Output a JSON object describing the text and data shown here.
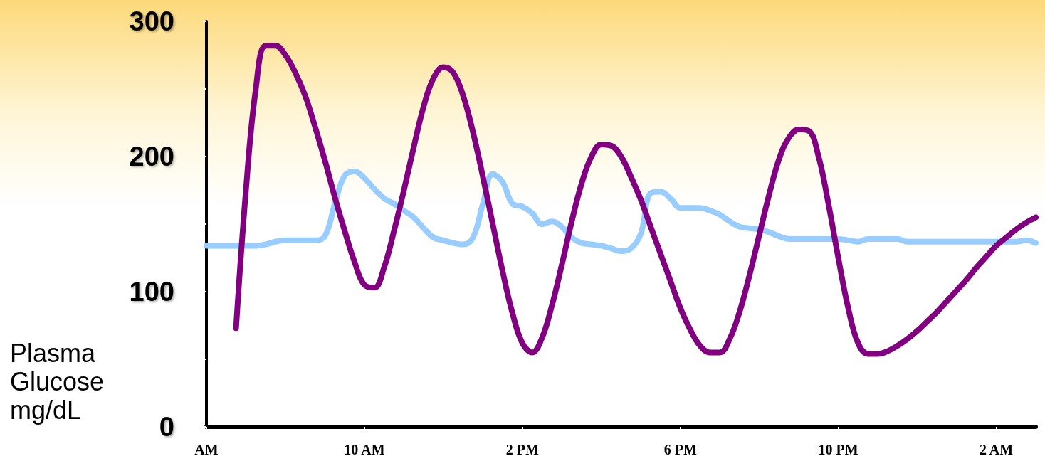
{
  "chart_data": {
    "type": "line",
    "ylabel": "Plasma Glucose mg/dL",
    "categories": [
      "AM",
      null,
      null,
      null,
      null,
      null,
      null,
      null,
      null,
      null,
      null,
      null,
      null,
      null,
      null,
      null,
      "10 AM",
      null,
      null,
      null,
      null,
      null,
      null,
      null,
      null,
      null,
      null,
      null,
      null,
      null,
      null,
      null,
      "2 PM",
      null,
      null,
      null,
      null,
      null,
      null,
      null,
      null,
      null,
      null,
      null,
      null,
      null,
      null,
      null,
      "6 PM",
      null,
      null,
      null,
      null,
      null,
      null,
      null,
      null,
      null,
      null,
      null,
      null,
      null,
      null,
      null,
      "10 PM",
      null,
      null,
      null,
      null,
      null,
      null,
      null,
      null,
      null,
      null,
      null,
      null,
      null,
      null,
      null,
      "2 AM",
      null,
      null,
      null,
      null
    ],
    "ylim": [
      0,
      300
    ],
    "yticks": [
      0,
      {
        "value": 50,
        "label": null
      },
      100,
      {
        "value": 150,
        "label": null
      },
      200,
      {
        "value": 250,
        "label": null
      },
      300
    ],
    "grid": false,
    "marker": "none",
    "line_style": "solid",
    "series": [
      {
        "color": "#99ccff",
        "values": [
          134,
          134,
          134,
          134,
          134,
          134,
          135,
          137,
          138,
          138,
          138,
          138,
          141,
          165,
          186,
          189,
          184,
          176,
          169,
          165,
          160,
          155,
          147,
          140,
          138,
          136,
          135,
          140,
          165,
          187,
          181,
          165,
          163,
          158,
          150,
          152,
          148,
          140,
          136,
          135,
          134,
          132,
          130,
          132,
          143,
          173,
          174,
          169,
          162,
          162,
          162,
          160,
          157,
          152,
          148,
          147,
          146,
          144,
          141,
          139,
          139,
          139,
          139,
          139,
          139,
          138,
          137,
          139,
          139,
          139,
          139,
          137,
          137,
          137,
          137,
          137,
          137,
          137,
          137,
          137,
          137,
          137,
          137,
          138,
          136
        ]
      },
      {
        "color": "#800080",
        "values": [
          null,
          null,
          null,
          73,
          175,
          250,
          282,
          282,
          275,
          262,
          245,
          222,
          197,
          170,
          145,
          122,
          105,
          103,
          118,
          145,
          175,
          207,
          237,
          258,
          266,
          262,
          245,
          218,
          185,
          150,
          115,
          84,
          62,
          55,
          66,
          90,
          120,
          152,
          180,
          200,
          209,
          208,
          200,
          185,
          168,
          148,
          128,
          108,
          88,
          72,
          60,
          55,
          55,
          65,
          85,
          112,
          142,
          172,
          198,
          214,
          220,
          219,
          200,
          165,
          125,
          88,
          62,
          54,
          54,
          56,
          60,
          65,
          71,
          78,
          85,
          93,
          101,
          109,
          118,
          126,
          134,
          140,
          146,
          151,
          155
        ]
      }
    ]
  }
}
